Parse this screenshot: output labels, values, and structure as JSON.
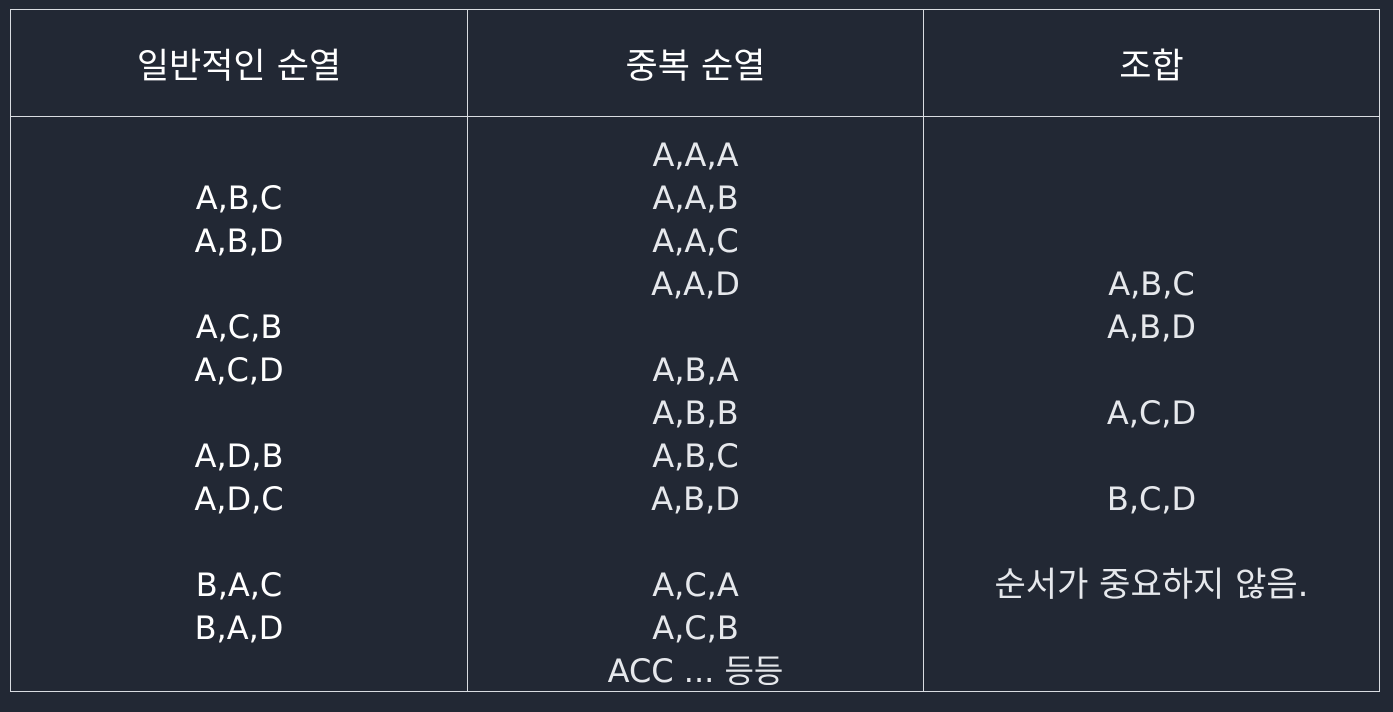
{
  "headers": [
    "일반적인 순열",
    "중복 순열",
    "조합"
  ],
  "col1": [
    "",
    "A,B,C",
    "A,B,D",
    "",
    "A,C,B",
    "A,C,D",
    "",
    "A,D,B",
    "A,D,C",
    "",
    "B,A,C",
    "B,A,D"
  ],
  "col2": [
    "A,A,A",
    "A,A,B",
    "A,A,C",
    "A,A,D",
    "",
    "A,B,A",
    "A,B,B",
    "A,B,C",
    "A,B,D",
    "",
    "A,C,A",
    "A,C,B",
    "ACC ... 등등"
  ],
  "col3": [
    "",
    "",
    "",
    "A,B,C",
    "A,B,D",
    "",
    "A,C,D",
    "",
    "B,C,D",
    "",
    "순서가 중요하지 않음."
  ]
}
